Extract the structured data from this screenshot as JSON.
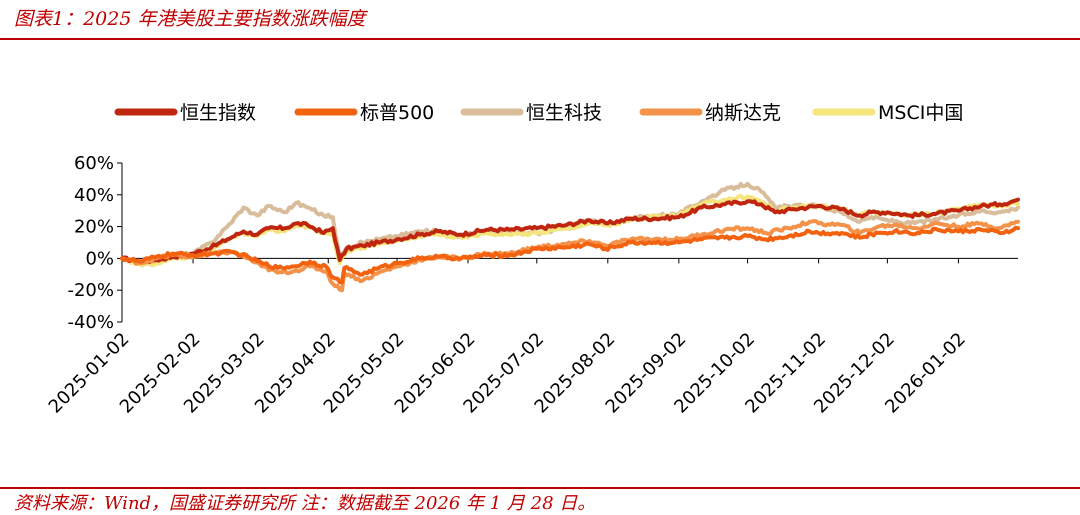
{
  "title": "图表1：2025 年港美股主要指数涨跌幅度",
  "source": "资料来源：Wind，国盛证券研究所   注：数据截至 2026 年 1 月 28 日。",
  "chart_data": {
    "type": "line",
    "title": "",
    "xlabel": "",
    "ylabel": "",
    "y_unit": "%",
    "ylim": [
      -40,
      60
    ],
    "yticks": [
      -40,
      -20,
      0,
      20,
      40,
      60
    ],
    "ytick_labels": [
      "-40%",
      "-20%",
      "0%",
      "20%",
      "40%",
      "60%"
    ],
    "xlim": [
      "2025-01-02",
      "2026-01-28"
    ],
    "xticks": [
      "2025-01-02",
      "2025-02-02",
      "2025-03-02",
      "2025-04-02",
      "2025-05-02",
      "2025-06-02",
      "2025-07-02",
      "2025-08-02",
      "2025-09-02",
      "2025-10-02",
      "2025-11-02",
      "2025-12-02",
      "2026-01-02"
    ],
    "grid": false,
    "legend_position": "top",
    "series": [
      {
        "name": "恒生指数",
        "color": "#c0260f",
        "points": [
          [
            "2025-01-02",
            0
          ],
          [
            "2025-01-10",
            -2
          ],
          [
            "2025-01-17",
            -1
          ],
          [
            "2025-01-24",
            1
          ],
          [
            "2025-02-02",
            3
          ],
          [
            "2025-02-10",
            7
          ],
          [
            "2025-02-17",
            12
          ],
          [
            "2025-02-24",
            17
          ],
          [
            "2025-03-02",
            15
          ],
          [
            "2025-03-07",
            19
          ],
          [
            "2025-03-14",
            19
          ],
          [
            "2025-03-19",
            22
          ],
          [
            "2025-03-24",
            21
          ],
          [
            "2025-03-31",
            16
          ],
          [
            "2025-04-04",
            19
          ],
          [
            "2025-04-07",
            -1
          ],
          [
            "2025-04-10",
            6
          ],
          [
            "2025-04-17",
            8
          ],
          [
            "2025-04-24",
            10
          ],
          [
            "2025-05-02",
            12
          ],
          [
            "2025-05-12",
            15
          ],
          [
            "2025-05-20",
            17
          ],
          [
            "2025-05-30",
            15
          ],
          [
            "2025-06-10",
            18
          ],
          [
            "2025-06-20",
            18
          ],
          [
            "2025-07-02",
            19
          ],
          [
            "2025-07-15",
            21
          ],
          [
            "2025-07-25",
            24
          ],
          [
            "2025-08-02",
            22
          ],
          [
            "2025-08-12",
            25
          ],
          [
            "2025-08-22",
            25
          ],
          [
            "2025-09-02",
            26
          ],
          [
            "2025-09-12",
            32
          ],
          [
            "2025-09-22",
            34
          ],
          [
            "2025-10-02",
            36
          ],
          [
            "2025-10-08",
            34
          ],
          [
            "2025-10-14",
            29
          ],
          [
            "2025-10-22",
            31
          ],
          [
            "2025-11-02",
            33
          ],
          [
            "2025-11-12",
            31
          ],
          [
            "2025-11-20",
            27
          ],
          [
            "2025-11-25",
            29
          ],
          [
            "2025-12-02",
            29
          ],
          [
            "2025-12-12",
            27
          ],
          [
            "2025-12-22",
            28
          ],
          [
            "2026-01-02",
            30
          ],
          [
            "2026-01-12",
            33
          ],
          [
            "2026-01-20",
            34
          ],
          [
            "2026-01-26",
            36
          ],
          [
            "2026-01-28",
            37
          ]
        ]
      },
      {
        "name": "标普500",
        "color": "#f2620f",
        "points": [
          [
            "2025-01-02",
            0
          ],
          [
            "2025-01-10",
            -2
          ],
          [
            "2025-01-17",
            1
          ],
          [
            "2025-01-24",
            3
          ],
          [
            "2025-02-02",
            2
          ],
          [
            "2025-02-10",
            3
          ],
          [
            "2025-02-19",
            4
          ],
          [
            "2025-02-26",
            1
          ],
          [
            "2025-03-04",
            -3
          ],
          [
            "2025-03-11",
            -6
          ],
          [
            "2025-03-18",
            -5
          ],
          [
            "2025-03-25",
            -2
          ],
          [
            "2025-04-01",
            -5
          ],
          [
            "2025-04-04",
            -12
          ],
          [
            "2025-04-08",
            -15
          ],
          [
            "2025-04-09",
            -6
          ],
          [
            "2025-04-17",
            -10
          ],
          [
            "2025-04-24",
            -6
          ],
          [
            "2025-05-02",
            -3
          ],
          [
            "2025-05-12",
            0
          ],
          [
            "2025-05-20",
            1
          ],
          [
            "2025-05-30",
            0
          ],
          [
            "2025-06-10",
            2
          ],
          [
            "2025-06-20",
            2
          ],
          [
            "2025-07-02",
            6
          ],
          [
            "2025-07-15",
            7
          ],
          [
            "2025-07-25",
            9
          ],
          [
            "2025-08-01",
            6
          ],
          [
            "2025-08-12",
            10
          ],
          [
            "2025-08-22",
            10
          ],
          [
            "2025-09-02",
            10
          ],
          [
            "2025-09-12",
            12
          ],
          [
            "2025-09-22",
            13
          ],
          [
            "2025-10-02",
            14
          ],
          [
            "2025-10-10",
            12
          ],
          [
            "2025-10-20",
            14
          ],
          [
            "2025-10-29",
            17
          ],
          [
            "2025-11-02",
            16
          ],
          [
            "2025-11-12",
            16
          ],
          [
            "2025-11-20",
            13
          ],
          [
            "2025-11-28",
            16
          ],
          [
            "2025-12-05",
            17
          ],
          [
            "2025-12-15",
            16
          ],
          [
            "2025-12-24",
            18
          ],
          [
            "2026-01-02",
            17
          ],
          [
            "2026-01-12",
            18
          ],
          [
            "2026-01-20",
            16
          ],
          [
            "2026-01-26",
            18
          ],
          [
            "2026-01-28",
            19
          ]
        ]
      },
      {
        "name": "恒生科技",
        "color": "#d9bc9a",
        "points": [
          [
            "2025-01-02",
            0
          ],
          [
            "2025-01-10",
            -3
          ],
          [
            "2025-01-17",
            -2
          ],
          [
            "2025-01-24",
            2
          ],
          [
            "2025-02-02",
            3
          ],
          [
            "2025-02-10",
            10
          ],
          [
            "2025-02-17",
            20
          ],
          [
            "2025-02-24",
            32
          ],
          [
            "2025-03-02",
            27
          ],
          [
            "2025-03-07",
            33
          ],
          [
            "2025-03-14",
            29
          ],
          [
            "2025-03-19",
            35
          ],
          [
            "2025-03-24",
            32
          ],
          [
            "2025-03-31",
            27
          ],
          [
            "2025-04-04",
            26
          ],
          [
            "2025-04-07",
            0
          ],
          [
            "2025-04-10",
            7
          ],
          [
            "2025-04-17",
            10
          ],
          [
            "2025-04-24",
            12
          ],
          [
            "2025-05-02",
            14
          ],
          [
            "2025-05-12",
            17
          ],
          [
            "2025-05-20",
            17
          ],
          [
            "2025-05-30",
            14
          ],
          [
            "2025-06-10",
            17
          ],
          [
            "2025-06-20",
            16
          ],
          [
            "2025-07-02",
            16
          ],
          [
            "2025-07-15",
            19
          ],
          [
            "2025-07-25",
            24
          ],
          [
            "2025-08-02",
            21
          ],
          [
            "2025-08-12",
            25
          ],
          [
            "2025-08-22",
            27
          ],
          [
            "2025-09-02",
            28
          ],
          [
            "2025-09-12",
            36
          ],
          [
            "2025-09-22",
            43
          ],
          [
            "2025-10-02",
            47
          ],
          [
            "2025-10-08",
            42
          ],
          [
            "2025-10-14",
            32
          ],
          [
            "2025-10-22",
            33
          ],
          [
            "2025-11-02",
            33
          ],
          [
            "2025-11-12",
            29
          ],
          [
            "2025-11-20",
            23
          ],
          [
            "2025-11-25",
            26
          ],
          [
            "2025-12-02",
            24
          ],
          [
            "2025-12-12",
            22
          ],
          [
            "2025-12-22",
            24
          ],
          [
            "2026-01-02",
            27
          ],
          [
            "2026-01-12",
            30
          ],
          [
            "2026-01-20",
            29
          ],
          [
            "2026-01-26",
            31
          ],
          [
            "2026-01-28",
            32
          ]
        ]
      },
      {
        "name": "纳斯达克",
        "color": "#f5924a",
        "points": [
          [
            "2025-01-02",
            0
          ],
          [
            "2025-01-10",
            -3
          ],
          [
            "2025-01-17",
            0
          ],
          [
            "2025-01-24",
            2
          ],
          [
            "2025-02-02",
            1
          ],
          [
            "2025-02-10",
            3
          ],
          [
            "2025-02-19",
            4
          ],
          [
            "2025-02-26",
            0
          ],
          [
            "2025-03-04",
            -5
          ],
          [
            "2025-03-11",
            -9
          ],
          [
            "2025-03-18",
            -8
          ],
          [
            "2025-03-25",
            -5
          ],
          [
            "2025-04-01",
            -8
          ],
          [
            "2025-04-04",
            -16
          ],
          [
            "2025-04-08",
            -20
          ],
          [
            "2025-04-09",
            -9
          ],
          [
            "2025-04-17",
            -14
          ],
          [
            "2025-04-24",
            -9
          ],
          [
            "2025-05-02",
            -5
          ],
          [
            "2025-05-12",
            -1
          ],
          [
            "2025-05-20",
            1
          ],
          [
            "2025-05-30",
            0
          ],
          [
            "2025-06-10",
            3
          ],
          [
            "2025-06-20",
            3
          ],
          [
            "2025-07-02",
            7
          ],
          [
            "2025-07-15",
            9
          ],
          [
            "2025-07-25",
            11
          ],
          [
            "2025-08-01",
            8
          ],
          [
            "2025-08-12",
            12
          ],
          [
            "2025-08-22",
            12
          ],
          [
            "2025-09-02",
            12
          ],
          [
            "2025-09-12",
            15
          ],
          [
            "2025-09-22",
            18
          ],
          [
            "2025-10-02",
            19
          ],
          [
            "2025-10-10",
            16
          ],
          [
            "2025-10-20",
            19
          ],
          [
            "2025-10-29",
            23
          ],
          [
            "2025-11-02",
            22
          ],
          [
            "2025-11-12",
            21
          ],
          [
            "2025-11-20",
            16
          ],
          [
            "2025-11-28",
            20
          ],
          [
            "2025-12-05",
            21
          ],
          [
            "2025-12-15",
            19
          ],
          [
            "2025-12-24",
            22
          ],
          [
            "2026-01-02",
            20
          ],
          [
            "2026-01-12",
            22
          ],
          [
            "2026-01-20",
            19
          ],
          [
            "2026-01-26",
            22
          ],
          [
            "2026-01-28",
            23
          ]
        ]
      },
      {
        "name": "MSCI中国",
        "color": "#f4e57c",
        "points": [
          [
            "2025-01-02",
            0
          ],
          [
            "2025-01-10",
            -4
          ],
          [
            "2025-01-17",
            -3
          ],
          [
            "2025-01-24",
            0
          ],
          [
            "2025-02-02",
            1
          ],
          [
            "2025-02-10",
            6
          ],
          [
            "2025-02-17",
            11
          ],
          [
            "2025-02-24",
            16
          ],
          [
            "2025-03-02",
            14
          ],
          [
            "2025-03-07",
            18
          ],
          [
            "2025-03-14",
            17
          ],
          [
            "2025-03-19",
            21
          ],
          [
            "2025-03-24",
            20
          ],
          [
            "2025-03-31",
            16
          ],
          [
            "2025-04-04",
            16
          ],
          [
            "2025-04-07",
            -3
          ],
          [
            "2025-04-10",
            5
          ],
          [
            "2025-04-17",
            7
          ],
          [
            "2025-04-24",
            9
          ],
          [
            "2025-05-02",
            11
          ],
          [
            "2025-05-12",
            14
          ],
          [
            "2025-05-20",
            15
          ],
          [
            "2025-05-30",
            13
          ],
          [
            "2025-06-10",
            16
          ],
          [
            "2025-06-20",
            15
          ],
          [
            "2025-07-02",
            16
          ],
          [
            "2025-07-15",
            19
          ],
          [
            "2025-07-25",
            22
          ],
          [
            "2025-08-02",
            21
          ],
          [
            "2025-08-12",
            24
          ],
          [
            "2025-08-22",
            26
          ],
          [
            "2025-09-02",
            27
          ],
          [
            "2025-09-12",
            34
          ],
          [
            "2025-09-22",
            37
          ],
          [
            "2025-10-02",
            39
          ],
          [
            "2025-10-08",
            36
          ],
          [
            "2025-10-14",
            30
          ],
          [
            "2025-10-22",
            32
          ],
          [
            "2025-11-02",
            33
          ],
          [
            "2025-11-12",
            31
          ],
          [
            "2025-11-20",
            27
          ],
          [
            "2025-11-25",
            29
          ],
          [
            "2025-12-02",
            29
          ],
          [
            "2025-12-12",
            27
          ],
          [
            "2025-12-22",
            28
          ],
          [
            "2026-01-02",
            31
          ],
          [
            "2026-01-12",
            34
          ],
          [
            "2026-01-20",
            33
          ],
          [
            "2026-01-26",
            35
          ],
          [
            "2026-01-28",
            34
          ]
        ]
      }
    ]
  }
}
